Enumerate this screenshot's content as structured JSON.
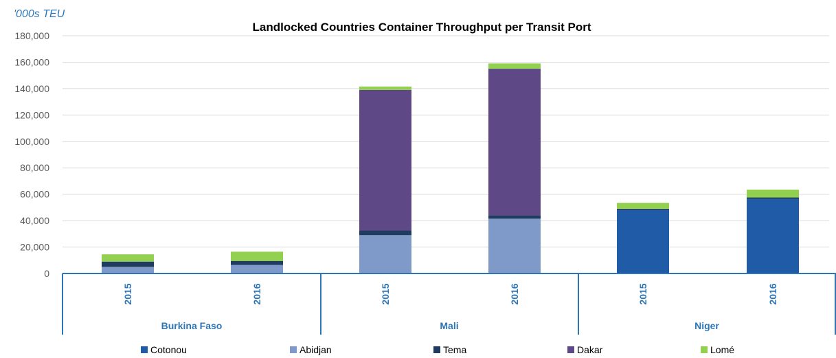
{
  "chart_data": {
    "type": "bar",
    "stacked": true,
    "title": "Landlocked Countries Container Throughput per Transit Port",
    "unit_label": "'000s TEU",
    "ylim": [
      0,
      180000
    ],
    "y_ticks": [
      "0",
      "20,000",
      "40,000",
      "60,000",
      "80,000",
      "100,000",
      "120,000",
      "140,000",
      "160,000",
      "180,000"
    ],
    "y_tick_values": [
      0,
      20000,
      40000,
      60000,
      80000,
      100000,
      120000,
      140000,
      160000,
      180000
    ],
    "grid": true,
    "legend_position": "bottom",
    "groups": [
      {
        "name": "Burkina Faso",
        "categories": [
          "2015",
          "2016"
        ]
      },
      {
        "name": "Mali",
        "categories": [
          "2015",
          "2016"
        ]
      },
      {
        "name": "Niger",
        "categories": [
          "2015",
          "2016"
        ]
      }
    ],
    "series": [
      {
        "name": "Cotonou",
        "color": "#1f5ba6",
        "values": [
          0,
          0,
          0,
          0,
          48000,
          56500
        ]
      },
      {
        "name": "Abidjan",
        "color": "#7f9ac8",
        "values": [
          5000,
          6500,
          29000,
          41500,
          0,
          0
        ]
      },
      {
        "name": "Tema",
        "color": "#1f3b5f",
        "values": [
          4000,
          3000,
          3500,
          2500,
          1000,
          1000
        ]
      },
      {
        "name": "Dakar",
        "color": "#5e4886",
        "values": [
          0,
          0,
          106500,
          111000,
          0,
          0
        ]
      },
      {
        "name": "Lomé",
        "color": "#92d050",
        "values": [
          5500,
          7000,
          2500,
          4000,
          4500,
          6000
        ]
      }
    ]
  }
}
